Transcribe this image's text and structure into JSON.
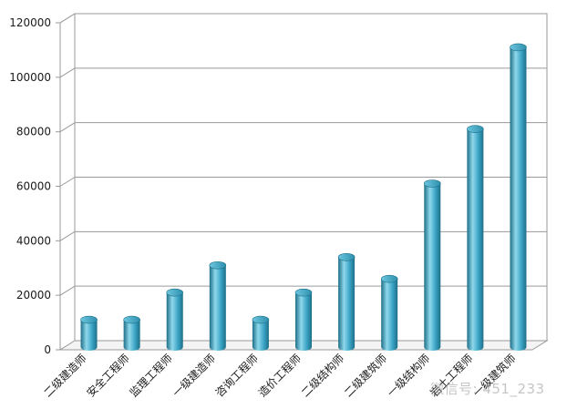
{
  "chart_data": {
    "type": "bar",
    "categories": [
      "二级建造师",
      "安全工程师",
      "监理工程师",
      "一级建造师",
      "咨询工程师",
      "造价工程师",
      "二级结构师",
      "二级建筑师",
      "一级结构师",
      "岩土工程师",
      "一级建筑师"
    ],
    "values": [
      10000,
      10000,
      20000,
      30000,
      10000,
      20000,
      33000,
      25000,
      60000,
      80000,
      110000
    ],
    "ylim": [
      0,
      120000
    ],
    "yticks": [
      0,
      20000,
      40000,
      60000,
      80000,
      100000,
      120000
    ],
    "grid": true,
    "legend": "none",
    "bar_color": "#3aa3c4",
    "bar_dark": "#1e6f88",
    "bar_light": "#8fd8ec"
  },
  "watermark": "微信号: 451_233"
}
